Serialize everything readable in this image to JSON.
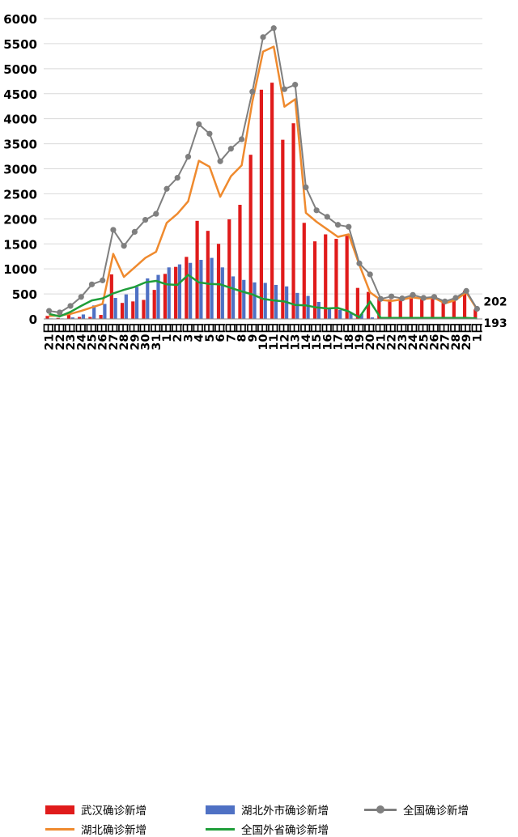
{
  "chart_data": {
    "type": "bar",
    "ylim": [
      0,
      6000
    ],
    "yticks": [
      0,
      500,
      1000,
      1500,
      2000,
      2500,
      3000,
      3500,
      4000,
      4500,
      5000,
      5500,
      6000
    ],
    "ytick_labels": [
      "0",
      "500",
      "1000",
      "1500",
      "2000",
      "2500",
      "3000",
      "3500",
      "4000",
      "4500",
      "5000",
      "5500",
      "6000"
    ],
    "categories": [
      "21日",
      "22日",
      "23日",
      "24日",
      "25日",
      "26日",
      "27日",
      "28日",
      "29日",
      "30日",
      "31日",
      "1日",
      "2日",
      "3日",
      "4日",
      "5日",
      "6日",
      "7日",
      "8日",
      "9日",
      "10日",
      "11日",
      "12日",
      "13日",
      "14日",
      "15日",
      "16日",
      "17日",
      "18日",
      "19日",
      "20日",
      "21日",
      "22日",
      "23日",
      "24日",
      "25日",
      "26日",
      "27日",
      "28日",
      "29日",
      "1日"
    ],
    "grid": true,
    "legend_position": "bottom",
    "colors": {
      "wuhan": "#e01b1b",
      "hubei_other": "#4f71c4",
      "national": "#7f7f7f",
      "hubei": "#ef8a2e",
      "outside_hubei": "#1f9e3a"
    },
    "series": [
      {
        "name": "武汉确诊新增",
        "kind": "bar",
        "values": [
          60,
          20,
          80,
          40,
          40,
          80,
          890,
          320,
          350,
          380,
          580,
          900,
          1040,
          1240,
          1960,
          1760,
          1500,
          1990,
          2280,
          3280,
          4580,
          4720,
          3580,
          3910,
          1920,
          1550,
          1690,
          1600,
          1660,
          620,
          540,
          400,
          390,
          420,
          470,
          410,
          420,
          370,
          400,
          560,
          190
        ]
      },
      {
        "name": "湖北外市确诊新增",
        "kind": "bar",
        "values": [
          10,
          10,
          30,
          90,
          270,
          300,
          420,
          490,
          640,
          810,
          880,
          1030,
          1090,
          1120,
          1180,
          1220,
          1030,
          850,
          780,
          730,
          720,
          680,
          650,
          520,
          460,
          340,
          200,
          180,
          120,
          100,
          30,
          20,
          20,
          10,
          10,
          10,
          10,
          10,
          10,
          10,
          5
        ]
      },
      {
        "name": "全国确诊新增",
        "kind": "line",
        "values": [
          160,
          130,
          260,
          440,
          690,
          770,
          1780,
          1460,
          1740,
          1980,
          2100,
          2600,
          2820,
          3240,
          3890,
          3700,
          3150,
          3400,
          3590,
          4540,
          5630,
          5810,
          4590,
          4680,
          2630,
          2170,
          2040,
          1880,
          1840,
          1110,
          890,
          400,
          450,
          410,
          480,
          420,
          440,
          350,
          420,
          560,
          202
        ]
      },
      {
        "name": "湖北确诊新增",
        "kind": "line",
        "values": [
          60,
          70,
          100,
          160,
          230,
          300,
          1300,
          840,
          1030,
          1220,
          1340,
          1920,
          2100,
          2350,
          3160,
          3040,
          2440,
          2850,
          3070,
          4340,
          5340,
          5440,
          4240,
          4390,
          2120,
          1940,
          1790,
          1640,
          1690,
          1080,
          530,
          380,
          360,
          390,
          430,
          400,
          420,
          310,
          380,
          530,
          193
        ]
      },
      {
        "name": "全国外省确诊新增",
        "kind": "line",
        "values": [
          100,
          50,
          140,
          260,
          370,
          410,
          510,
          580,
          640,
          730,
          760,
          690,
          680,
          880,
          730,
          700,
          690,
          620,
          550,
          490,
          400,
          370,
          350,
          280,
          270,
          230,
          210,
          220,
          150,
          30,
          350,
          20,
          20,
          20,
          20,
          20,
          20,
          20,
          20,
          20,
          9
        ]
      }
    ],
    "annotations": [
      "202",
      "193"
    ]
  }
}
